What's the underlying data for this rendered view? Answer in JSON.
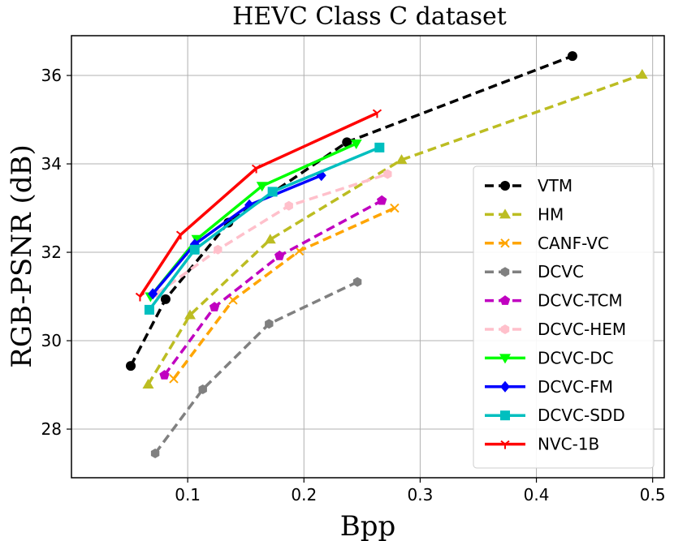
{
  "chart_data": {
    "type": "line",
    "title": "HEVC Class C dataset",
    "xlabel": "Bpp",
    "ylabel": "RGB-PSNR (dB)",
    "xlim": [
      0.0,
      0.51
    ],
    "ylim": [
      26.9,
      36.9
    ],
    "xticks": [
      0.1,
      0.2,
      0.3,
      0.4,
      0.5
    ],
    "yticks": [
      28,
      30,
      32,
      34,
      36
    ],
    "xtick_labels": [
      "0.1",
      "0.2",
      "0.3",
      "0.4",
      "0.5"
    ],
    "ytick_labels": [
      "28",
      "30",
      "32",
      "34",
      "36"
    ],
    "grid": true,
    "legend_position": "right",
    "series": [
      {
        "name": "VTM",
        "color": "#000000",
        "dash": "dashed",
        "marker": "circle",
        "x": [
          0.051,
          0.081,
          0.135,
          0.237,
          0.431
        ],
        "y": [
          29.43,
          30.94,
          32.67,
          34.49,
          36.44
        ]
      },
      {
        "name": "HM",
        "color": "#bcbd22",
        "dash": "dashed",
        "marker": "triangle-up",
        "x": [
          0.066,
          0.102,
          0.171,
          0.284,
          0.491
        ],
        "y": [
          29.01,
          30.58,
          32.29,
          34.09,
          36.02
        ]
      },
      {
        "name": "CANF-VC",
        "color": "#ffa500",
        "dash": "dashed",
        "marker": "x",
        "x": [
          0.088,
          0.139,
          0.196,
          0.278
        ],
        "y": [
          29.14,
          30.92,
          32.03,
          33.0
        ]
      },
      {
        "name": "DCVC",
        "color": "#808080",
        "dash": "dashed",
        "marker": "hexagon",
        "x": [
          0.072,
          0.113,
          0.17,
          0.246
        ],
        "y": [
          27.45,
          28.9,
          30.38,
          31.33
        ]
      },
      {
        "name": "DCVC-TCM",
        "color": "#c000c0",
        "dash": "dashed",
        "marker": "pentagon",
        "x": [
          0.08,
          0.123,
          0.179,
          0.267
        ],
        "y": [
          29.22,
          30.76,
          31.92,
          33.17
        ]
      },
      {
        "name": "DCVC-HEM",
        "color": "#ffc0cb",
        "dash": "dashed",
        "marker": "hexagon",
        "x": [
          0.074,
          0.126,
          0.187,
          0.272
        ],
        "y": [
          31.07,
          32.06,
          33.05,
          33.77
        ]
      },
      {
        "name": "DCVC-DC",
        "color": "#00ff00",
        "dash": "solid",
        "marker": "triangle-down",
        "x": [
          0.068,
          0.108,
          0.164,
          0.245
        ],
        "y": [
          31.0,
          32.3,
          33.5,
          34.46
        ]
      },
      {
        "name": "DCVC-FM",
        "color": "#0000ff",
        "dash": "solid",
        "marker": "diamond",
        "x": [
          0.07,
          0.106,
          0.153,
          0.215
        ],
        "y": [
          31.06,
          32.18,
          33.07,
          33.74
        ]
      },
      {
        "name": "DCVC-SDD",
        "color": "#00bfbf",
        "dash": "solid",
        "marker": "square",
        "x": [
          0.067,
          0.106,
          0.173,
          0.265
        ],
        "y": [
          30.7,
          32.06,
          33.37,
          34.37
        ]
      },
      {
        "name": "NVC-1B",
        "color": "#ff0000",
        "dash": "solid",
        "marker": "tri",
        "x": [
          0.059,
          0.094,
          0.159,
          0.263
        ],
        "y": [
          31.0,
          32.4,
          33.9,
          35.15
        ]
      }
    ]
  }
}
